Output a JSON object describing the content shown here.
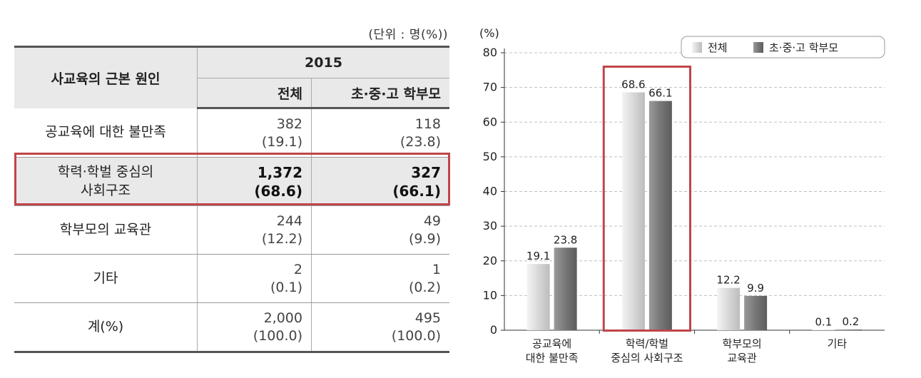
{
  "table": {
    "unit_note": "(단위 : 명(%))",
    "header": {
      "cause": "사교육의 근본 원인",
      "year": "2015",
      "col_all": "전체",
      "col_parents": "초·중·고 학부모"
    },
    "rows": [
      {
        "label": "공교육에 대한 불만족",
        "all_count": "382",
        "all_pct": "(19.1)",
        "par_count": "118",
        "par_pct": "(23.8)"
      },
      {
        "label_line1": "학력·학벌 중심의",
        "label_line2": "사회구조",
        "all_count": "1,372",
        "all_pct": "(68.6)",
        "par_count": "327",
        "par_pct": "(66.1)"
      },
      {
        "label": "학부모의 교육관",
        "all_count": "244",
        "all_pct": "(12.2)",
        "par_count": "49",
        "par_pct": "(9.9)"
      },
      {
        "label": "기타",
        "all_count": "2",
        "all_pct": "(0.1)",
        "par_count": "1",
        "par_pct": "(0.2)"
      },
      {
        "label": "계(%)",
        "all_count": "2,000",
        "all_pct": "(100.0)",
        "par_count": "495",
        "par_pct": "(100.0)"
      }
    ],
    "highlight_color": "#c0454a"
  },
  "chart_data": {
    "type": "bar",
    "ylabel": "(%)",
    "ylim": [
      0,
      80
    ],
    "yticks": [
      0,
      10,
      20,
      30,
      40,
      50,
      60,
      70,
      80
    ],
    "grid": true,
    "legend_position": "top-right",
    "categories": [
      [
        "공교육에",
        "대한 불만족"
      ],
      [
        "학력/학벌",
        "중심의 사회구조"
      ],
      [
        "학부모의",
        "교육관"
      ],
      [
        "기타"
      ]
    ],
    "series": [
      {
        "name": "전체",
        "values": [
          19.1,
          68.6,
          12.2,
          0.1
        ],
        "color": "#d6d6d6"
      },
      {
        "name": "초·중·고 학부모",
        "values": [
          23.8,
          66.1,
          9.9,
          0.2
        ],
        "color": "#777777"
      }
    ],
    "highlight_category": 1,
    "highlight_color": "#c0454a"
  }
}
